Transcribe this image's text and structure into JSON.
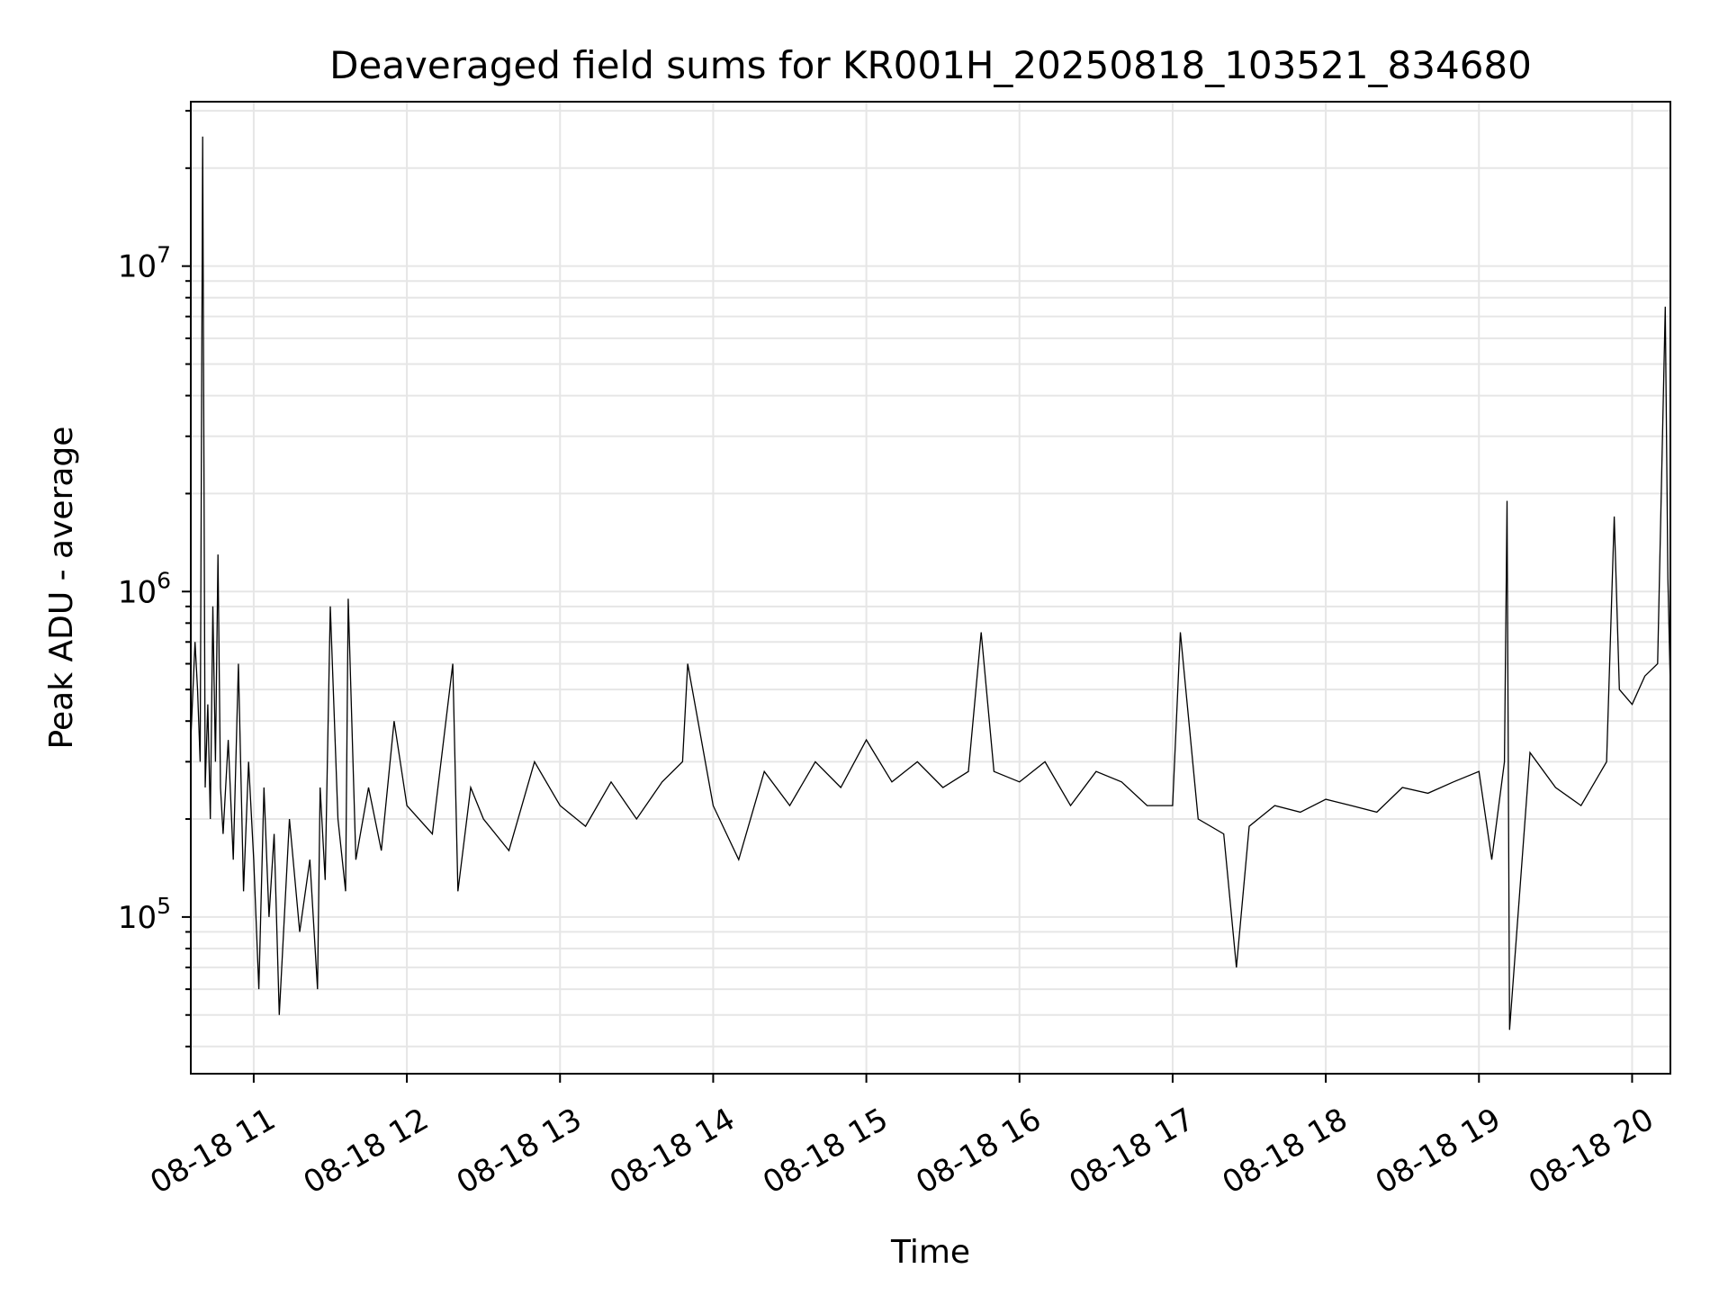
{
  "chart_data": {
    "type": "line",
    "title": "Deaveraged field sums for KR001H_20250818_103521_834680",
    "xlabel": "Time",
    "ylabel": "Peak ADU - average",
    "yscale": "log",
    "grid": true,
    "colors": {
      "line": "#000000",
      "grid": "#e6e6e6",
      "axes": "#000000"
    },
    "xlim": [
      "2025-08-18T10:35:21",
      "2025-08-18T20:15:00"
    ],
    "ylim": [
      33000,
      32000000
    ],
    "x_ticks": [
      {
        "value": "2025-08-18T11:00:00",
        "label": "08-18 11"
      },
      {
        "value": "2025-08-18T12:00:00",
        "label": "08-18 12"
      },
      {
        "value": "2025-08-18T13:00:00",
        "label": "08-18 13"
      },
      {
        "value": "2025-08-18T14:00:00",
        "label": "08-18 14"
      },
      {
        "value": "2025-08-18T15:00:00",
        "label": "08-18 15"
      },
      {
        "value": "2025-08-18T16:00:00",
        "label": "08-18 16"
      },
      {
        "value": "2025-08-18T17:00:00",
        "label": "08-18 17"
      },
      {
        "value": "2025-08-18T18:00:00",
        "label": "08-18 18"
      },
      {
        "value": "2025-08-18T19:00:00",
        "label": "08-18 19"
      },
      {
        "value": "2025-08-18T20:00:00",
        "label": "08-18 20"
      }
    ],
    "y_ticks": [
      {
        "value": 100000,
        "base": "10",
        "exp": "5"
      },
      {
        "value": 1000000,
        "base": "10",
        "exp": "6"
      },
      {
        "value": 10000000,
        "base": "10",
        "exp": "7"
      }
    ],
    "series": [
      {
        "x": [
          "2025-08-18T10:35:21",
          "2025-08-18T10:37:00",
          "2025-08-18T10:38:00",
          "2025-08-18T10:39:00",
          "2025-08-18T10:40:00",
          "2025-08-18T10:41:00",
          "2025-08-18T10:42:00",
          "2025-08-18T10:43:00",
          "2025-08-18T10:44:00",
          "2025-08-18T10:45:00",
          "2025-08-18T10:46:00",
          "2025-08-18T10:47:00",
          "2025-08-18T10:48:00",
          "2025-08-18T10:50:00",
          "2025-08-18T10:52:00",
          "2025-08-18T10:54:00",
          "2025-08-18T10:56:00",
          "2025-08-18T10:58:00",
          "2025-08-18T11:00:00",
          "2025-08-18T11:02:00",
          "2025-08-18T11:04:00",
          "2025-08-18T11:06:00",
          "2025-08-18T11:08:00",
          "2025-08-18T11:10:00",
          "2025-08-18T11:14:00",
          "2025-08-18T11:18:00",
          "2025-08-18T11:22:00",
          "2025-08-18T11:25:00",
          "2025-08-18T11:26:00",
          "2025-08-18T11:28:00",
          "2025-08-18T11:30:00",
          "2025-08-18T11:33:00",
          "2025-08-18T11:36:00",
          "2025-08-18T11:37:00",
          "2025-08-18T11:40:00",
          "2025-08-18T11:45:00",
          "2025-08-18T11:50:00",
          "2025-08-18T11:55:00",
          "2025-08-18T12:00:00",
          "2025-08-18T12:10:00",
          "2025-08-18T12:18:00",
          "2025-08-18T12:20:00",
          "2025-08-18T12:25:00",
          "2025-08-18T12:30:00",
          "2025-08-18T12:40:00",
          "2025-08-18T12:50:00",
          "2025-08-18T13:00:00",
          "2025-08-18T13:10:00",
          "2025-08-18T13:20:00",
          "2025-08-18T13:30:00",
          "2025-08-18T13:40:00",
          "2025-08-18T13:48:00",
          "2025-08-18T13:50:00",
          "2025-08-18T14:00:00",
          "2025-08-18T14:10:00",
          "2025-08-18T14:20:00",
          "2025-08-18T14:30:00",
          "2025-08-18T14:40:00",
          "2025-08-18T14:50:00",
          "2025-08-18T15:00:00",
          "2025-08-18T15:10:00",
          "2025-08-18T15:20:00",
          "2025-08-18T15:30:00",
          "2025-08-18T15:40:00",
          "2025-08-18T15:45:00",
          "2025-08-18T15:50:00",
          "2025-08-18T16:00:00",
          "2025-08-18T16:10:00",
          "2025-08-18T16:20:00",
          "2025-08-18T16:30:00",
          "2025-08-18T16:40:00",
          "2025-08-18T16:50:00",
          "2025-08-18T17:00:00",
          "2025-08-18T17:03:00",
          "2025-08-18T17:10:00",
          "2025-08-18T17:20:00",
          "2025-08-18T17:25:00",
          "2025-08-18T17:30:00",
          "2025-08-18T17:40:00",
          "2025-08-18T17:50:00",
          "2025-08-18T18:00:00",
          "2025-08-18T18:10:00",
          "2025-08-18T18:20:00",
          "2025-08-18T18:30:00",
          "2025-08-18T18:40:00",
          "2025-08-18T18:50:00",
          "2025-08-18T19:00:00",
          "2025-08-18T19:05:00",
          "2025-08-18T19:10:00",
          "2025-08-18T19:11:00",
          "2025-08-18T19:12:00",
          "2025-08-18T19:20:00",
          "2025-08-18T19:30:00",
          "2025-08-18T19:40:00",
          "2025-08-18T19:50:00",
          "2025-08-18T19:53:00",
          "2025-08-18T19:55:00",
          "2025-08-18T20:00:00",
          "2025-08-18T20:05:00",
          "2025-08-18T20:10:00",
          "2025-08-18T20:13:00",
          "2025-08-18T20:14:00",
          "2025-08-18T20:15:00"
        ],
        "y": [
          350000,
          700000,
          500000,
          300000,
          25000000,
          250000,
          450000,
          200000,
          900000,
          300000,
          1300000,
          250000,
          180000,
          350000,
          150000,
          600000,
          120000,
          300000,
          150000,
          60000,
          250000,
          100000,
          180000,
          50000,
          200000,
          90000,
          150000,
          60000,
          250000,
          130000,
          900000,
          200000,
          120000,
          950000,
          150000,
          250000,
          160000,
          400000,
          220000,
          180000,
          600000,
          120000,
          250000,
          200000,
          160000,
          300000,
          220000,
          190000,
          260000,
          200000,
          260000,
          300000,
          600000,
          220000,
          150000,
          280000,
          220000,
          300000,
          250000,
          350000,
          260000,
          300000,
          250000,
          280000,
          750000,
          280000,
          260000,
          300000,
          220000,
          280000,
          260000,
          220000,
          220000,
          750000,
          200000,
          180000,
          70000,
          190000,
          220000,
          210000,
          230000,
          220000,
          210000,
          250000,
          240000,
          260000,
          280000,
          150000,
          300000,
          1900000,
          45000,
          320000,
          250000,
          220000,
          300000,
          1700000,
          500000,
          450000,
          550000,
          600000,
          7500000,
          1100000,
          500000
        ]
      }
    ]
  }
}
